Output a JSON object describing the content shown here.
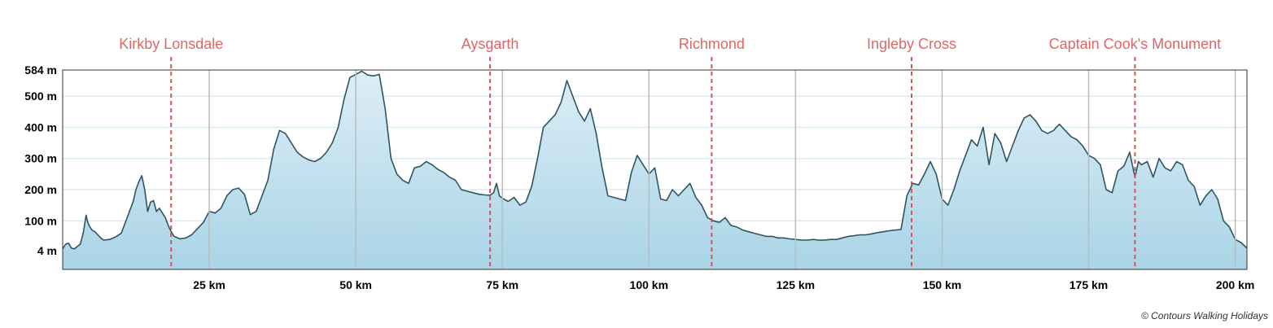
{
  "chart_data": {
    "type": "area",
    "xlim": [
      0,
      202
    ],
    "ylim": [
      4,
      584
    ],
    "x_ticks": [
      {
        "value": 25,
        "label": "25 km"
      },
      {
        "value": 50,
        "label": "50 km"
      },
      {
        "value": 75,
        "label": "75 km"
      },
      {
        "value": 100,
        "label": "100 km"
      },
      {
        "value": 125,
        "label": "125 km"
      },
      {
        "value": 150,
        "label": "150 km"
      },
      {
        "value": 175,
        "label": "175 km"
      },
      {
        "value": 200,
        "label": "200 km"
      }
    ],
    "y_ticks": [
      {
        "value": 4,
        "label": "4 m"
      },
      {
        "value": 100,
        "label": "100 m"
      },
      {
        "value": 200,
        "label": "200 m"
      },
      {
        "value": 300,
        "label": "300 m"
      },
      {
        "value": 400,
        "label": "400 m"
      },
      {
        "value": 500,
        "label": "500 m"
      },
      {
        "value": 584,
        "label": "584 m"
      }
    ],
    "markers": [
      {
        "name": "Kirkby Lonsdale",
        "x": 18.5
      },
      {
        "name": "Aysgarth",
        "x": 72.9
      },
      {
        "name": "Richmond",
        "x": 110.7
      },
      {
        "name": "Ingleby Cross",
        "x": 144.8
      },
      {
        "name": "Captain Cook's Monument",
        "x": 182.9
      }
    ],
    "x": [
      0,
      0.5,
      1,
      1.5,
      2,
      3,
      3.5,
      4,
      4.2,
      4.5,
      5,
      5.5,
      6,
      6.5,
      7,
      8,
      9,
      10,
      11,
      12,
      12.5,
      13,
      13.5,
      14,
      14.5,
      15,
      15.5,
      16,
      16.5,
      17,
      17.5,
      18,
      18.5,
      19,
      20,
      21,
      22,
      23,
      24,
      25,
      26,
      27,
      28,
      29,
      30,
      31,
      32,
      33,
      34,
      35,
      36,
      37,
      38,
      39,
      40,
      41,
      42,
      43,
      44,
      45,
      46,
      47,
      48,
      49,
      50,
      51,
      52,
      53,
      54,
      55,
      56,
      57,
      58,
      59,
      60,
      61,
      62,
      63,
      64,
      65,
      66,
      67,
      68,
      69,
      70,
      71,
      72,
      72.9,
      73.5,
      74,
      74.5,
      75,
      76,
      77,
      78,
      79,
      80,
      81,
      82,
      83,
      84,
      85,
      86,
      87,
      88,
      89,
      90,
      91,
      92,
      93,
      94,
      95,
      96,
      97,
      98,
      99,
      100,
      101,
      102,
      103,
      104,
      105,
      106,
      107,
      108,
      109,
      110,
      111,
      112,
      113,
      114,
      115,
      116,
      117,
      118,
      119,
      120,
      121,
      122,
      123,
      124,
      125,
      126,
      127,
      128,
      129,
      130,
      131,
      132,
      133,
      134,
      135,
      136,
      137,
      138,
      139,
      140,
      141,
      142,
      143,
      144,
      145,
      146,
      147,
      148,
      149,
      150,
      151,
      152,
      153,
      154,
      155,
      156,
      157,
      158,
      159,
      160,
      161,
      162,
      163,
      164,
      165,
      166,
      167,
      168,
      169,
      170,
      171,
      172,
      173,
      174,
      175,
      176,
      177,
      178,
      179,
      180,
      181,
      182,
      182.9,
      183.5,
      184,
      185,
      186,
      187,
      188,
      189,
      190,
      191,
      192,
      193,
      194,
      195,
      196,
      197,
      198,
      199,
      200,
      201,
      202
    ],
    "y": [
      10,
      25,
      28,
      12,
      10,
      25,
      60,
      118,
      100,
      85,
      70,
      65,
      55,
      45,
      38,
      40,
      48,
      60,
      110,
      160,
      200,
      225,
      245,
      200,
      130,
      160,
      165,
      130,
      140,
      125,
      110,
      85,
      65,
      50,
      42,
      45,
      55,
      75,
      95,
      130,
      125,
      140,
      180,
      200,
      205,
      185,
      120,
      130,
      180,
      230,
      330,
      390,
      380,
      350,
      320,
      305,
      295,
      290,
      300,
      320,
      350,
      400,
      490,
      560,
      570,
      580,
      568,
      565,
      570,
      460,
      300,
      250,
      230,
      220,
      270,
      275,
      290,
      280,
      265,
      255,
      240,
      230,
      200,
      195,
      190,
      185,
      183,
      182,
      190,
      220,
      180,
      172,
      162,
      175,
      150,
      160,
      210,
      300,
      400,
      420,
      440,
      480,
      550,
      500,
      450,
      420,
      460,
      380,
      270,
      180,
      175,
      170,
      165,
      255,
      310,
      280,
      250,
      270,
      170,
      165,
      200,
      180,
      200,
      220,
      175,
      150,
      110,
      100,
      95,
      110,
      85,
      80,
      70,
      65,
      60,
      55,
      50,
      50,
      45,
      45,
      42,
      40,
      38,
      38,
      40,
      38,
      38,
      40,
      40,
      45,
      50,
      52,
      55,
      55,
      58,
      62,
      65,
      68,
      70,
      72,
      180,
      220,
      215,
      250,
      290,
      250,
      170,
      150,
      200,
      260,
      310,
      360,
      340,
      400,
      280,
      380,
      350,
      290,
      340,
      390,
      430,
      440,
      420,
      390,
      380,
      390,
      410,
      390,
      370,
      360,
      340,
      310,
      300,
      280,
      200,
      190,
      260,
      275,
      320,
      240,
      290,
      280,
      290,
      240,
      300,
      270,
      260,
      290,
      280,
      230,
      210,
      150,
      180,
      200,
      170,
      100,
      80,
      40,
      30,
      12
    ]
  },
  "credit": "© Contours Walking Holidays",
  "colors": {
    "area_top": "#ddeef6",
    "area_bottom": "#aad4e6",
    "line": "#2f5560",
    "marker": "#d9525a",
    "marker_text": "#e06666",
    "grid_h": "#d9ecf3",
    "grid_v": "#bbbbbb"
  }
}
